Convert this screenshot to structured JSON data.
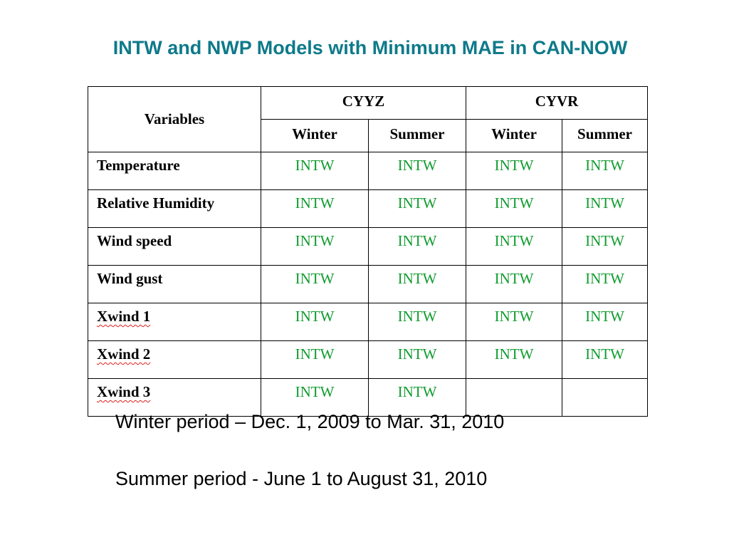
{
  "title": "INTW and NWP Models with Minimum MAE in CAN-NOW",
  "table": {
    "variables_header": "Variables",
    "stations": [
      "CYYZ",
      "CYVR"
    ],
    "seasons": [
      "Winter",
      "Summer",
      "Winter",
      "Summer"
    ],
    "rows": [
      {
        "label": "Temperature",
        "cells": [
          "INTW",
          "INTW",
          "INTW",
          "INTW"
        ]
      },
      {
        "label": "Relative Humidity",
        "cells": [
          "INTW",
          "INTW",
          "INTW",
          "INTW"
        ]
      },
      {
        "label": "Wind speed",
        "cells": [
          "INTW",
          "INTW",
          "INTW",
          "INTW"
        ]
      },
      {
        "label": "Wind gust",
        "cells": [
          "INTW",
          "INTW",
          "INTW",
          "INTW"
        ]
      },
      {
        "label": "Xwind 1",
        "cells": [
          "INTW",
          "INTW",
          "INTW",
          "INTW"
        ]
      },
      {
        "label": "Xwind 2",
        "cells": [
          "INTW",
          "INTW",
          "INTW",
          "INTW"
        ]
      },
      {
        "label": "Xwind 3",
        "cells": [
          "INTW",
          "INTW",
          "",
          ""
        ]
      }
    ]
  },
  "notes": {
    "winter": "Winter period – Dec. 1, 2009 to Mar. 31, 2010",
    "summer": "Summer period - June 1 to August 31, 2010"
  },
  "colors": {
    "title": "#0e7a8a",
    "cell_value": "#0f9c2e",
    "spellcheck_underline": "#e02020"
  }
}
